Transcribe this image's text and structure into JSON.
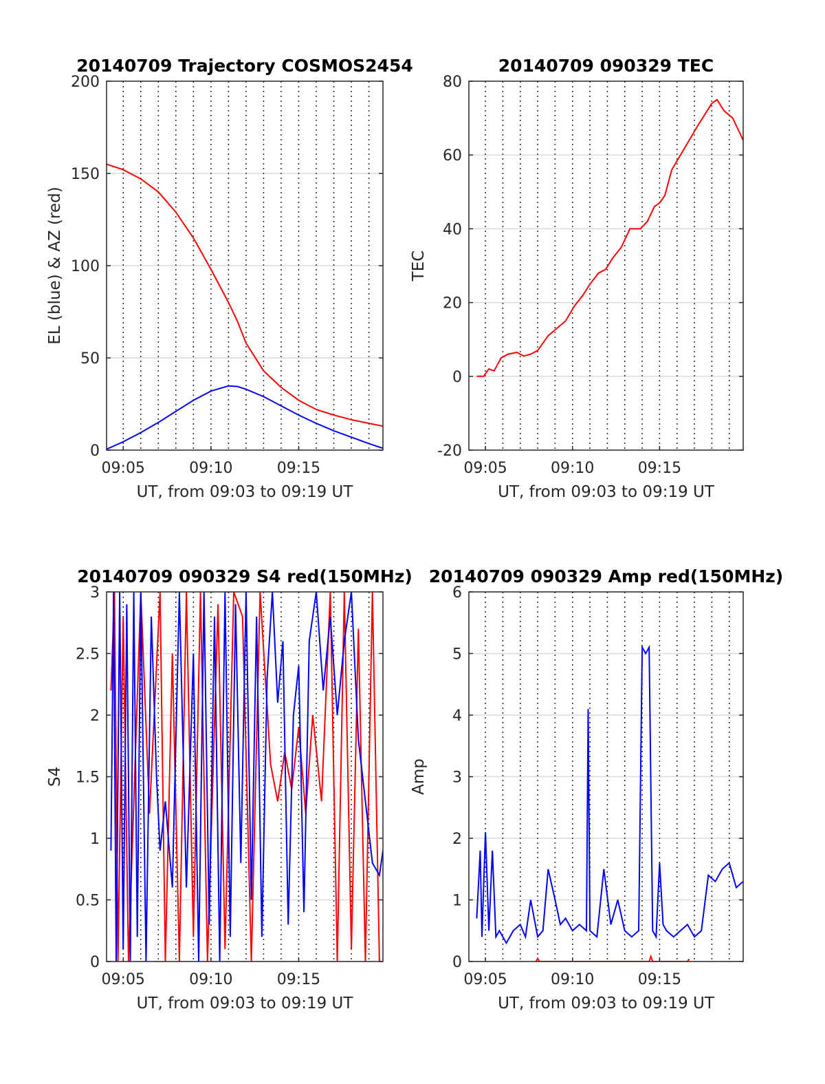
{
  "chart_data": [
    {
      "id": "trajectory",
      "type": "line",
      "title": "20140709 Trajectory COSMOS2454",
      "xlabel": "UT, from 09:03 to 09:19 UT",
      "ylabel": "EL (blue) & AZ (red)",
      "xlim": [
        9.05,
        24.8
      ],
      "ylim": [
        0,
        200
      ],
      "yticks": [
        0,
        50,
        100,
        150,
        200
      ],
      "xticks": [
        {
          "v": 10,
          "label": "09:05"
        },
        {
          "v": 15,
          "label": "09:10"
        },
        {
          "v": 20,
          "label": "09:15"
        }
      ],
      "xminor": [
        11,
        12,
        13,
        14,
        16,
        17,
        18,
        19,
        21,
        22,
        23,
        24
      ],
      "grid": true,
      "series": [
        {
          "color": "#ff0000",
          "x": [
            9.05,
            10,
            11,
            12,
            13,
            14,
            15,
            16,
            16.5,
            17,
            18,
            19,
            20,
            21,
            22,
            23,
            24,
            24.8
          ],
          "y": [
            155,
            152,
            147,
            140,
            129,
            115,
            98,
            80,
            70,
            58,
            43,
            34,
            27,
            22,
            19,
            16.5,
            14.5,
            13
          ]
        },
        {
          "color": "#0000ff",
          "x": [
            9.05,
            10,
            11,
            12,
            13,
            14,
            15,
            16,
            16.5,
            17,
            18,
            19,
            20,
            21,
            22,
            23,
            24,
            24.8
          ],
          "y": [
            0.5,
            4.5,
            9.5,
            15,
            21,
            27,
            32,
            34.8,
            34.5,
            33,
            29,
            24,
            19,
            14.5,
            10.5,
            7,
            3.5,
            1
          ]
        }
      ]
    },
    {
      "id": "tec",
      "type": "line",
      "title": "20140709 090329 TEC",
      "xlabel": "UT, from 09:03 to 09:19 UT",
      "ylabel": "TEC",
      "xlim": [
        9.05,
        24.8
      ],
      "ylim": [
        -20,
        80
      ],
      "yticks": [
        -20,
        0,
        20,
        40,
        60,
        80
      ],
      "xticks": [
        {
          "v": 10,
          "label": "09:05"
        },
        {
          "v": 15,
          "label": "09:10"
        },
        {
          "v": 20,
          "label": "09:15"
        }
      ],
      "xminor": [
        11,
        12,
        13,
        14,
        16,
        17,
        18,
        19,
        21,
        22,
        23,
        24
      ],
      "grid": true,
      "series": [
        {
          "color": "#ff0000",
          "x": [
            9.5,
            9.9,
            10.2,
            10.5,
            10.9,
            11.3,
            11.8,
            12.2,
            12.6,
            13.0,
            13.6,
            14.1,
            14.6,
            15.1,
            15.6,
            16.0,
            16.5,
            16.9,
            17.3,
            17.8,
            18.3,
            18.9,
            19.3,
            19.7,
            20.0,
            20.3,
            20.7,
            21.2,
            21.7,
            22.2,
            22.6,
            23.0,
            23.3,
            23.7,
            24.2,
            24.8
          ],
          "y": [
            0,
            0,
            2,
            1.5,
            5,
            6,
            6.5,
            5.5,
            6,
            7,
            11,
            13,
            15,
            19,
            22,
            25,
            28,
            29,
            32,
            35,
            40,
            40,
            42,
            46,
            47,
            49,
            56,
            60,
            64,
            68,
            71,
            74,
            75,
            72,
            70,
            64
          ]
        }
      ]
    },
    {
      "id": "s4",
      "type": "line",
      "title": "20140709 090329 S4 red(150MHz)",
      "xlabel": "UT, from 09:03 to 09:19 UT",
      "ylabel": "S4",
      "xlim": [
        9.05,
        24.8
      ],
      "ylim": [
        0,
        3
      ],
      "yticks": [
        0,
        0.5,
        1,
        1.5,
        2,
        2.5,
        3
      ],
      "ytick_labels": [
        "0",
        "0.5",
        "1",
        "1.5",
        "2",
        "2.5",
        "3"
      ],
      "xticks": [
        {
          "v": 10,
          "label": "09:05"
        },
        {
          "v": 15,
          "label": "09:10"
        },
        {
          "v": 20,
          "label": "09:15"
        }
      ],
      "xminor": [
        11,
        12,
        13,
        14,
        16,
        17,
        18,
        19,
        21,
        22,
        23,
        24
      ],
      "grid": true,
      "series": [
        {
          "color": "#ff0000",
          "x": [
            9.3,
            9.5,
            9.7,
            10.0,
            10.3,
            11.0,
            11.5,
            12.1,
            12.4,
            12.8,
            13.2,
            13.6,
            14.0,
            14.4,
            14.8,
            15.4,
            15.8,
            16.3,
            16.8,
            17.3,
            17.8,
            18.4,
            18.8,
            19.2,
            19.6,
            20.0,
            20.4,
            20.8,
            21.3,
            21.8,
            22.2,
            22.6,
            23.0,
            23.4,
            23.8,
            24.2,
            24.6
          ],
          "y": [
            2.2,
            3,
            0,
            2.8,
            0,
            3,
            1.2,
            3,
            0,
            2.5,
            0,
            3,
            0.2,
            3,
            0,
            2.9,
            0.1,
            3,
            2.8,
            0,
            3,
            1.6,
            1.3,
            1.7,
            1.4,
            1.9,
            1.2,
            2.0,
            1.3,
            3,
            0,
            3,
            0.1,
            2.7,
            0,
            3,
            0
          ]
        },
        {
          "color": "#0000ff",
          "x": [
            9.3,
            9.45,
            9.6,
            9.8,
            10.0,
            10.2,
            10.4,
            10.6,
            10.8,
            11.0,
            11.3,
            11.6,
            11.9,
            12.1,
            12.4,
            12.8,
            13.2,
            13.6,
            14.0,
            14.3,
            14.6,
            14.9,
            15.2,
            15.5,
            15.8,
            16.1,
            16.4,
            16.7,
            17.0,
            17.3,
            17.6,
            17.9,
            18.2,
            18.5,
            18.8,
            19.1,
            19.4,
            19.7,
            20.0,
            20.3,
            20.6,
            21.0,
            21.4,
            21.8,
            22.2,
            22.6,
            23.0,
            23.4,
            23.8,
            24.2,
            24.6,
            24.8
          ],
          "y": [
            0.9,
            3,
            0,
            3,
            0.1,
            2.9,
            0,
            3,
            0.2,
            3,
            0,
            2.8,
            1.5,
            0.9,
            1.3,
            0.6,
            3,
            0.6,
            2.5,
            0,
            3,
            0.3,
            2.8,
            0,
            3,
            0.2,
            2.9,
            0.8,
            3,
            0.5,
            2.8,
            0.2,
            2.3,
            3,
            2.1,
            2.6,
            0.3,
            2.0,
            2.4,
            0.4,
            2.6,
            3,
            2.2,
            2.8,
            2.0,
            2.6,
            3,
            1.8,
            1.3,
            0.8,
            0.7,
            0.9
          ]
        }
      ]
    },
    {
      "id": "amp",
      "type": "line",
      "title": "20140709 090329 Amp red(150MHz)",
      "xlabel": "UT, from 09:03 to 09:19 UT",
      "ylabel": "Amp",
      "xlim": [
        9.05,
        24.8
      ],
      "ylim": [
        0,
        6
      ],
      "yticks": [
        0,
        1,
        2,
        3,
        4,
        5,
        6
      ],
      "xticks": [
        {
          "v": 10,
          "label": "09:05"
        },
        {
          "v": 15,
          "label": "09:10"
        },
        {
          "v": 20,
          "label": "09:15"
        }
      ],
      "xminor": [
        11,
        12,
        13,
        14,
        16,
        17,
        18,
        19,
        21,
        22,
        23,
        24
      ],
      "grid": true,
      "series": [
        {
          "color": "#ff0000",
          "x": [
            12.9,
            13.0,
            13.1,
            19.4,
            19.5,
            19.6,
            21.6,
            21.7
          ],
          "y": [
            0,
            0.05,
            0,
            0,
            0.08,
            0,
            0,
            0.04
          ]
        },
        {
          "color": "#0000ff",
          "x": [
            9.5,
            9.7,
            9.8,
            10.0,
            10.2,
            10.4,
            10.6,
            10.8,
            11.2,
            11.6,
            12.0,
            12.3,
            12.6,
            13.0,
            13.3,
            13.6,
            14.0,
            14.3,
            14.6,
            15.0,
            15.4,
            15.8,
            15.9,
            16.0,
            16.4,
            16.8,
            17.2,
            17.6,
            18.0,
            18.4,
            18.8,
            19.0,
            19.2,
            19.4,
            19.6,
            19.8,
            20.0,
            20.2,
            20.4,
            20.8,
            21.2,
            21.6,
            22.0,
            22.4,
            22.8,
            23.2,
            23.6,
            24.0,
            24.4,
            24.8
          ],
          "y": [
            0.7,
            1.8,
            0.4,
            2.1,
            0.5,
            1.8,
            0.4,
            0.5,
            0.3,
            0.5,
            0.6,
            0.4,
            1.0,
            0.4,
            0.5,
            1.5,
            1.0,
            0.6,
            0.7,
            0.5,
            0.6,
            0.5,
            4.1,
            0.5,
            0.4,
            1.5,
            0.6,
            1.0,
            0.5,
            0.4,
            0.5,
            5.1,
            5.0,
            5.1,
            0.5,
            0.4,
            1.6,
            0.6,
            0.5,
            0.4,
            0.5,
            0.6,
            0.4,
            0.5,
            1.4,
            1.3,
            1.5,
            1.6,
            1.2,
            1.3
          ]
        }
      ]
    }
  ]
}
